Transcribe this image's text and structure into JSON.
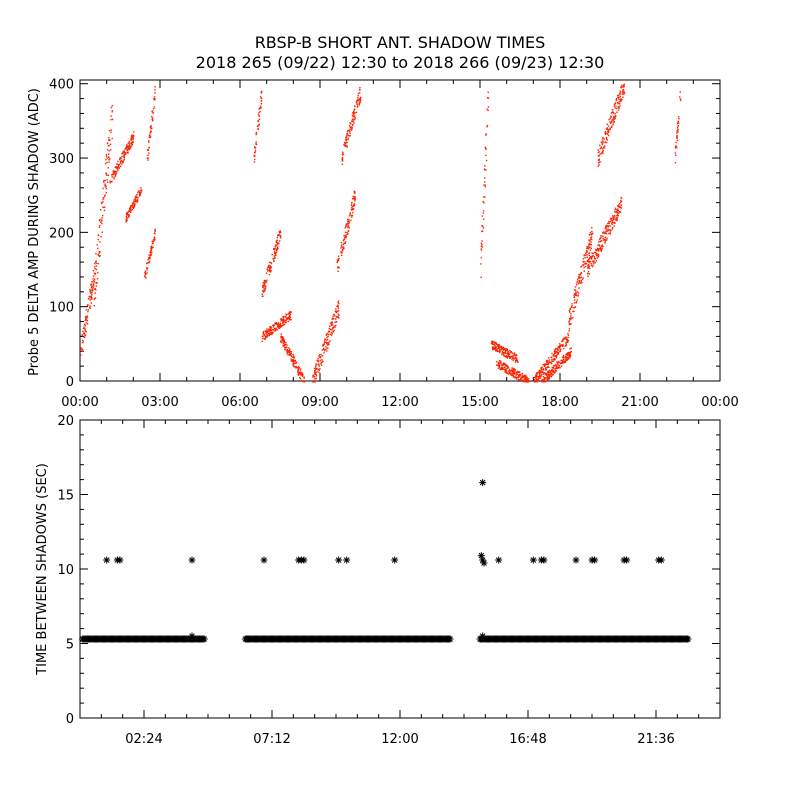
{
  "title_line1": "RBSP-B SHORT ANT. SHADOW TIMES",
  "title_line2": "2018 265 (09/22) 12:30 to 2018 266 (09/23) 12:30",
  "colors": {
    "amp_points": "#ff2200",
    "axis": "#000000",
    "shadow_marker": "#000000"
  },
  "chart_data": [
    {
      "type": "scatter",
      "ylabel": "Probe 5 DELTA AMP DURING SHADOW (ADC)",
      "xlim": [
        0,
        24
      ],
      "ylim": [
        0,
        405
      ],
      "y_ticks": [
        0,
        100,
        200,
        300,
        400
      ],
      "x_tick_labels": [
        "00:00",
        "03:00",
        "06:00",
        "09:00",
        "12:00",
        "15:00",
        "18:00",
        "21:00",
        "00:00"
      ],
      "segments": [
        {
          "start_hour": 0.0,
          "end_hour": 0.6,
          "y_start": 40,
          "y_end": 160
        },
        {
          "start_hour": 0.5,
          "end_hour": 1.2,
          "y_start": 120,
          "y_end": 360
        },
        {
          "start_hour": 1.1,
          "end_hour": 2.0,
          "y_start": 270,
          "y_end": 330
        },
        {
          "start_hour": 1.7,
          "end_hour": 2.3,
          "y_start": 220,
          "y_end": 260
        },
        {
          "start_hour": 2.4,
          "end_hour": 2.8,
          "y_start": 140,
          "y_end": 200
        },
        {
          "start_hour": 2.5,
          "end_hour": 2.8,
          "y_start": 300,
          "y_end": 390
        },
        {
          "start_hour": 6.5,
          "end_hour": 6.8,
          "y_start": 300,
          "y_end": 390
        },
        {
          "start_hour": 6.8,
          "end_hour": 7.5,
          "y_start": 120,
          "y_end": 200
        },
        {
          "start_hour": 6.8,
          "end_hour": 7.9,
          "y_start": 60,
          "y_end": 90
        },
        {
          "start_hour": 7.5,
          "end_hour": 8.4,
          "y_start": 60,
          "y_end": 0
        },
        {
          "start_hour": 8.7,
          "end_hour": 9.7,
          "y_start": 0,
          "y_end": 100
        },
        {
          "start_hour": 9.6,
          "end_hour": 10.3,
          "y_start": 150,
          "y_end": 250
        },
        {
          "start_hour": 9.8,
          "end_hour": 10.5,
          "y_start": 300,
          "y_end": 390
        },
        {
          "start_hour": 15.0,
          "end_hour": 15.3,
          "y_start": 150,
          "y_end": 390
        },
        {
          "start_hour": 15.4,
          "end_hour": 16.4,
          "y_start": 50,
          "y_end": 30
        },
        {
          "start_hour": 15.6,
          "end_hour": 16.8,
          "y_start": 25,
          "y_end": 0
        },
        {
          "start_hour": 17.0,
          "end_hour": 18.3,
          "y_start": 0,
          "y_end": 60
        },
        {
          "start_hour": 17.3,
          "end_hour": 18.4,
          "y_start": 0,
          "y_end": 40
        },
        {
          "start_hour": 18.3,
          "end_hour": 19.2,
          "y_start": 80,
          "y_end": 200
        },
        {
          "start_hour": 19.0,
          "end_hour": 20.3,
          "y_start": 150,
          "y_end": 240
        },
        {
          "start_hour": 19.4,
          "end_hour": 20.4,
          "y_start": 300,
          "y_end": 400
        },
        {
          "start_hour": 22.3,
          "end_hour": 22.5,
          "y_start": 300,
          "y_end": 390
        }
      ]
    },
    {
      "type": "scatter",
      "ylabel": "TIME BETWEEN SHADOWS (SEC)",
      "xlim": [
        0,
        24
      ],
      "ylim": [
        0,
        20
      ],
      "y_ticks": [
        0,
        5,
        10,
        15,
        20
      ],
      "x_ticks": [
        2.4,
        7.2,
        12.0,
        16.8,
        21.6
      ],
      "x_tick_labels": [
        "02:24",
        "07:12",
        "12:00",
        "16:48",
        "21:36"
      ],
      "baseline_value": 5.3,
      "baseline_segments": [
        [
          0.1,
          4.7
        ],
        [
          6.2,
          13.9
        ],
        [
          15.0,
          22.8
        ]
      ],
      "points": [
        {
          "x": 1.0,
          "y": 10.6
        },
        {
          "x": 1.4,
          "y": 10.6
        },
        {
          "x": 1.5,
          "y": 10.6
        },
        {
          "x": 4.2,
          "y": 10.6
        },
        {
          "x": 4.2,
          "y": 5.5
        },
        {
          "x": 6.9,
          "y": 10.6
        },
        {
          "x": 8.2,
          "y": 10.6
        },
        {
          "x": 8.3,
          "y": 10.6
        },
        {
          "x": 8.4,
          "y": 10.6
        },
        {
          "x": 9.7,
          "y": 10.6
        },
        {
          "x": 10.0,
          "y": 10.6
        },
        {
          "x": 11.8,
          "y": 10.6
        },
        {
          "x": 15.1,
          "y": 15.8
        },
        {
          "x": 15.05,
          "y": 10.9
        },
        {
          "x": 15.1,
          "y": 10.6
        },
        {
          "x": 15.15,
          "y": 10.4
        },
        {
          "x": 15.1,
          "y": 5.5
        },
        {
          "x": 15.7,
          "y": 10.6
        },
        {
          "x": 17.0,
          "y": 10.6
        },
        {
          "x": 17.3,
          "y": 10.6
        },
        {
          "x": 17.4,
          "y": 10.6
        },
        {
          "x": 18.6,
          "y": 10.6
        },
        {
          "x": 19.2,
          "y": 10.6
        },
        {
          "x": 19.3,
          "y": 10.6
        },
        {
          "x": 20.4,
          "y": 10.6
        },
        {
          "x": 20.5,
          "y": 10.6
        },
        {
          "x": 21.7,
          "y": 10.6
        },
        {
          "x": 21.8,
          "y": 10.6
        }
      ]
    }
  ]
}
